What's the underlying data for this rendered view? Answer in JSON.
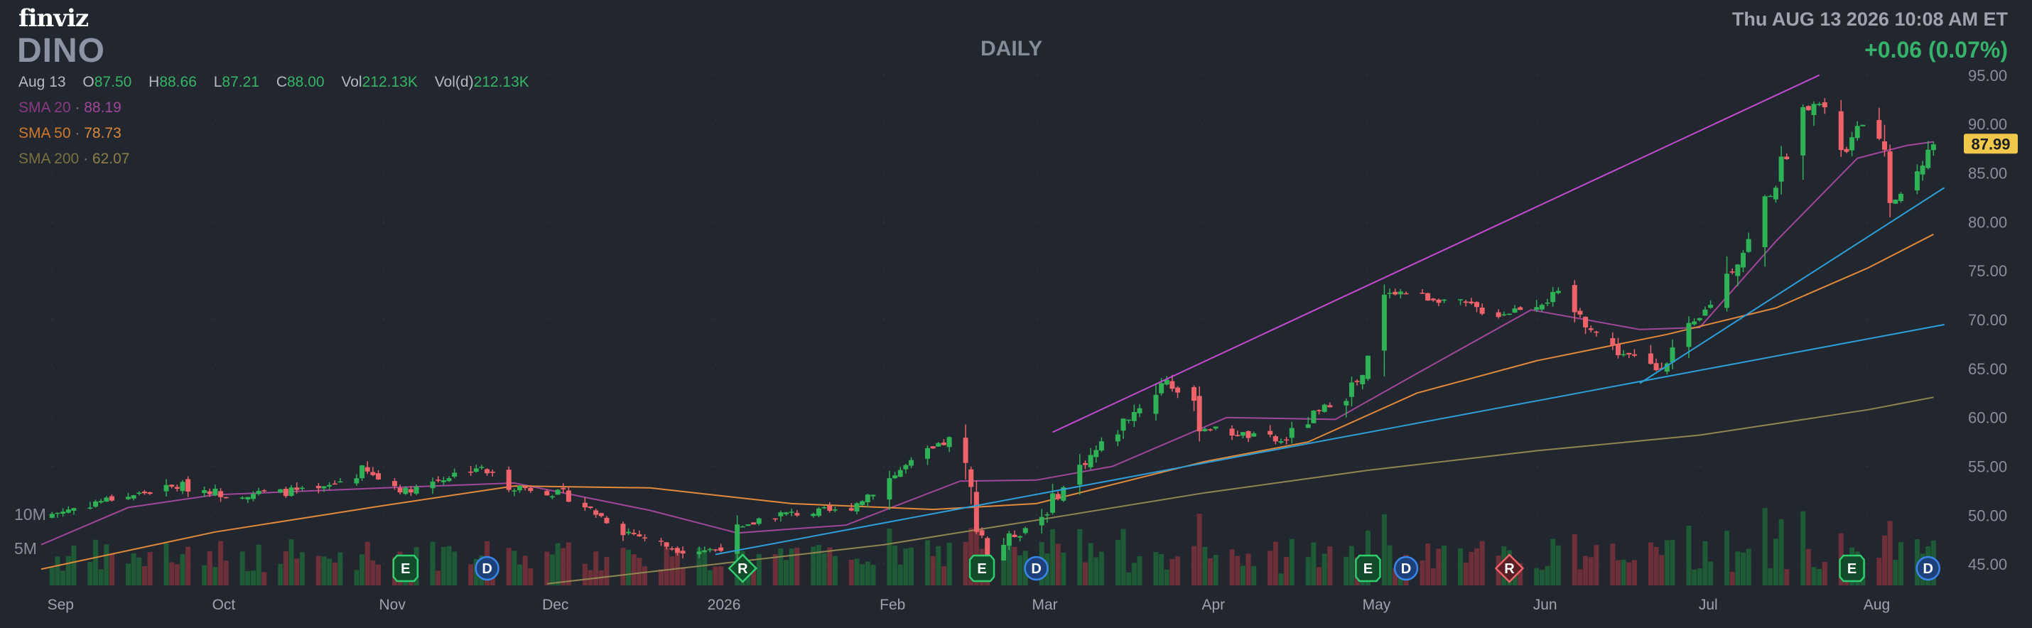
{
  "header": {
    "logo": "finviz",
    "ticker": "DINO",
    "timeframe": "DAILY",
    "datetime": "Thu AUG 13 2026 10:08 AM ET",
    "change": "+0.06 (0.07%)"
  },
  "ohlc": {
    "date": "Aug 13",
    "open_label": "O",
    "open": "87.50",
    "high_label": "H",
    "high": "88.66",
    "low_label": "L",
    "low": "87.21",
    "close_label": "C",
    "close": "88.00",
    "vol_label": "Vol",
    "vol": "212.13K",
    "vold_label": "Vol(d)",
    "vold": "212.13K"
  },
  "sma": [
    {
      "label": "SMA 20",
      "value": "88.19",
      "color": "#a0479a"
    },
    {
      "label": "SMA 50",
      "value": "78.73",
      "color": "#e38a3a"
    },
    {
      "label": "SMA 200",
      "value": "62.07",
      "color": "#8f8550"
    }
  ],
  "colors": {
    "background": "#22262f",
    "up": "#2fb155",
    "down": "#f0626a",
    "volume_up": "#1f5a37",
    "volume_down": "#6e3038",
    "trendline_upper": "#c64bd4",
    "trendline_lower": "#2d9fd9",
    "last_price_bg": "#f0c94a"
  },
  "chart_data": {
    "type": "candlestick",
    "y_axis": {
      "range": [
        44,
        96
      ],
      "ticks": [
        "95.00",
        "90.00",
        "85.00",
        "80.00",
        "75.00",
        "70.00",
        "65.00",
        "60.00",
        "55.00",
        "50.00",
        "45.00"
      ]
    },
    "x_axis": {
      "range": [
        "2025-08-30",
        "2026-08-17"
      ],
      "ticks": [
        {
          "date": "2025-09-01",
          "label": "Sep"
        },
        {
          "date": "2025-10-01",
          "label": "Oct"
        },
        {
          "date": "2025-11-01",
          "label": "Nov"
        },
        {
          "date": "2025-12-01",
          "label": "Dec"
        },
        {
          "date": "2026-01-01",
          "label": "2026"
        },
        {
          "date": "2026-02-01",
          "label": "Feb"
        },
        {
          "date": "2026-03-01",
          "label": "Mar"
        },
        {
          "date": "2026-04-01",
          "label": "Apr"
        },
        {
          "date": "2026-05-01",
          "label": "May"
        },
        {
          "date": "2026-06-01",
          "label": "Jun"
        },
        {
          "date": "2026-07-01",
          "label": "Jul"
        },
        {
          "date": "2026-08-01",
          "label": "Aug"
        }
      ]
    },
    "volume_axis": {
      "max": 30,
      "ticks": [
        "10M",
        "5M"
      ]
    },
    "last_price": "87.99",
    "close_series": [
      {
        "date": "2025-08-31",
        "close": 50.0
      },
      {
        "date": "2025-09-10",
        "close": 51.5
      },
      {
        "date": "2025-09-25",
        "close": 53.0
      },
      {
        "date": "2025-10-03",
        "close": 52.2
      },
      {
        "date": "2025-10-20",
        "close": 52.5
      },
      {
        "date": "2025-10-28",
        "close": 54.5
      },
      {
        "date": "2025-11-05",
        "close": 52.5
      },
      {
        "date": "2025-11-18",
        "close": 55.0
      },
      {
        "date": "2025-11-25",
        "close": 53.0
      },
      {
        "date": "2025-12-05",
        "close": 52.0
      },
      {
        "date": "2025-12-15",
        "close": 48.5
      },
      {
        "date": "2025-12-25",
        "close": 46.5
      },
      {
        "date": "2026-01-01",
        "close": 46.5
      },
      {
        "date": "2026-01-10",
        "close": 50.0
      },
      {
        "date": "2026-01-25",
        "close": 50.5
      },
      {
        "date": "2026-02-05",
        "close": 55.0
      },
      {
        "date": "2026-02-14",
        "close": 58.0
      },
      {
        "date": "2026-02-20",
        "close": 46.0
      },
      {
        "date": "2026-03-02",
        "close": 50.0
      },
      {
        "date": "2026-03-10",
        "close": 55.5
      },
      {
        "date": "2026-03-25",
        "close": 64.0
      },
      {
        "date": "2026-04-01",
        "close": 59.0
      },
      {
        "date": "2026-04-15",
        "close": 57.5
      },
      {
        "date": "2026-04-30",
        "close": 64.0
      },
      {
        "date": "2026-05-05",
        "close": 73.0
      },
      {
        "date": "2026-05-15",
        "close": 72.0
      },
      {
        "date": "2026-05-25",
        "close": 70.5
      },
      {
        "date": "2026-06-05",
        "close": 72.5
      },
      {
        "date": "2026-06-15",
        "close": 67.0
      },
      {
        "date": "2026-06-23",
        "close": 65.0
      },
      {
        "date": "2026-07-01",
        "close": 70.0
      },
      {
        "date": "2026-07-10",
        "close": 78.0
      },
      {
        "date": "2026-07-22",
        "close": 93.0
      },
      {
        "date": "2026-07-28",
        "close": 87.0
      },
      {
        "date": "2026-08-01",
        "close": 91.5
      },
      {
        "date": "2026-08-06",
        "close": 82.0
      },
      {
        "date": "2026-08-13",
        "close": 88.0
      }
    ],
    "sma_series": {
      "sma20": [
        {
          "date": "2025-08-30",
          "value": 47.0
        },
        {
          "date": "2025-09-15",
          "value": 50.8
        },
        {
          "date": "2025-10-01",
          "value": 52.1
        },
        {
          "date": "2025-11-01",
          "value": 52.8
        },
        {
          "date": "2025-11-25",
          "value": 53.3
        },
        {
          "date": "2025-12-20",
          "value": 50.5
        },
        {
          "date": "2026-01-05",
          "value": 48.2
        },
        {
          "date": "2026-01-25",
          "value": 49.0
        },
        {
          "date": "2026-02-15",
          "value": 53.5
        },
        {
          "date": "2026-03-01",
          "value": 53.6
        },
        {
          "date": "2026-03-15",
          "value": 55.0
        },
        {
          "date": "2026-04-05",
          "value": 60.0
        },
        {
          "date": "2026-04-25",
          "value": 59.8
        },
        {
          "date": "2026-05-10",
          "value": 64.5
        },
        {
          "date": "2026-05-31",
          "value": 71.0
        },
        {
          "date": "2026-06-20",
          "value": 69.0
        },
        {
          "date": "2026-07-01",
          "value": 69.2
        },
        {
          "date": "2026-07-15",
          "value": 78.0
        },
        {
          "date": "2026-07-30",
          "value": 86.5
        },
        {
          "date": "2026-08-08",
          "value": 87.8
        },
        {
          "date": "2026-08-13",
          "value": 88.19
        }
      ],
      "sma50": [
        {
          "date": "2025-08-30",
          "value": 44.5
        },
        {
          "date": "2025-10-01",
          "value": 48.3
        },
        {
          "date": "2025-11-01",
          "value": 51.0
        },
        {
          "date": "2025-11-25",
          "value": 53.0
        },
        {
          "date": "2025-12-20",
          "value": 52.8
        },
        {
          "date": "2026-01-15",
          "value": 51.2
        },
        {
          "date": "2026-02-10",
          "value": 50.6
        },
        {
          "date": "2026-03-01",
          "value": 51.2
        },
        {
          "date": "2026-04-01",
          "value": 55.5
        },
        {
          "date": "2026-04-20",
          "value": 57.5
        },
        {
          "date": "2026-05-10",
          "value": 62.5
        },
        {
          "date": "2026-06-01",
          "value": 65.8
        },
        {
          "date": "2026-06-25",
          "value": 68.5
        },
        {
          "date": "2026-07-15",
          "value": 71.2
        },
        {
          "date": "2026-08-01",
          "value": 75.3
        },
        {
          "date": "2026-08-13",
          "value": 78.73
        }
      ],
      "sma200": [
        {
          "date": "2025-12-01",
          "value": 43.0
        },
        {
          "date": "2026-01-01",
          "value": 45.0
        },
        {
          "date": "2026-02-01",
          "value": 47.0
        },
        {
          "date": "2026-03-01",
          "value": 49.5
        },
        {
          "date": "2026-04-01",
          "value": 52.3
        },
        {
          "date": "2026-05-01",
          "value": 54.6
        },
        {
          "date": "2026-06-01",
          "value": 56.6
        },
        {
          "date": "2026-07-01",
          "value": 58.2
        },
        {
          "date": "2026-08-01",
          "value": 60.8
        },
        {
          "date": "2026-08-13",
          "value": 62.07
        }
      ]
    },
    "trendlines": [
      {
        "name": "upper",
        "from": {
          "date": "2026-03-04",
          "value": 58.5
        },
        "to": {
          "date": "2026-07-23",
          "value": 95.0
        },
        "color": "#c64bd4"
      },
      {
        "name": "lower",
        "from": {
          "date": "2026-01-01",
          "value": 46.0
        },
        "to": {
          "date": "2026-08-15",
          "value": 69.5
        },
        "color": "#2d9fd9"
      },
      {
        "name": "lower-steep",
        "from": {
          "date": "2026-06-20",
          "value": 63.5
        },
        "to": {
          "date": "2026-08-15",
          "value": 83.5
        },
        "color": "#2d9fd9"
      }
    ],
    "event_markers": [
      {
        "date": "2025-11-05",
        "label": "E"
      },
      {
        "date": "2025-11-20",
        "label": "D"
      },
      {
        "date": "2026-01-06",
        "label": "R"
      },
      {
        "date": "2026-02-19",
        "label": "E"
      },
      {
        "date": "2026-03-01",
        "label": "D"
      },
      {
        "date": "2026-05-01",
        "label": "E"
      },
      {
        "date": "2026-05-08",
        "label": "D"
      },
      {
        "date": "2026-05-27",
        "label": "R"
      },
      {
        "date": "2026-07-29",
        "label": "E"
      },
      {
        "date": "2026-08-12",
        "label": "D"
      }
    ]
  }
}
